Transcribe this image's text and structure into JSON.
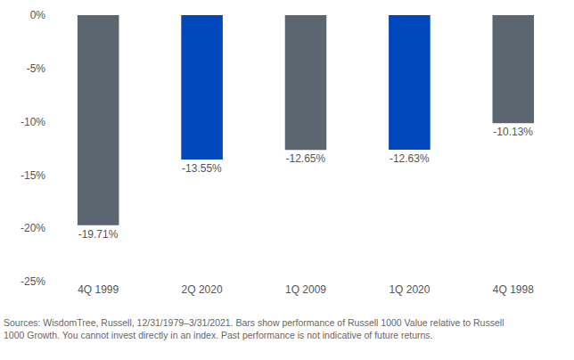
{
  "chart_data": {
    "type": "bar",
    "categories": [
      "4Q 1999",
      "2Q 2020",
      "1Q 2009",
      "1Q 2020",
      "4Q 1998"
    ],
    "values": [
      -19.71,
      -13.55,
      -12.65,
      -12.63,
      -10.13
    ],
    "value_labels": [
      "-19.71%",
      "-13.55%",
      "-12.65%",
      "-12.63%",
      "-10.13%"
    ],
    "colors": [
      "#5b6670",
      "#0047bb",
      "#5b6670",
      "#0047bb",
      "#5b6670"
    ],
    "data_labels": true,
    "ylim": [
      -25,
      0
    ],
    "yticks": [
      {
        "value": 0,
        "label": "0%"
      },
      {
        "value": -5,
        "label": "-5%"
      },
      {
        "value": -10,
        "label": "-10%"
      },
      {
        "value": -15,
        "label": "-15%"
      },
      {
        "value": -20,
        "label": "-20%"
      },
      {
        "value": -25,
        "label": "-25%"
      }
    ],
    "grid": false,
    "source": [
      "Sources: WisdomTree, Russell, 12/31/1979–3/31/2021. Bars show performance of Russell 1000 Value relative to Russell",
      "1000 Growth. You cannot invest directly in an index. Past performance is not indicative of future returns."
    ]
  }
}
